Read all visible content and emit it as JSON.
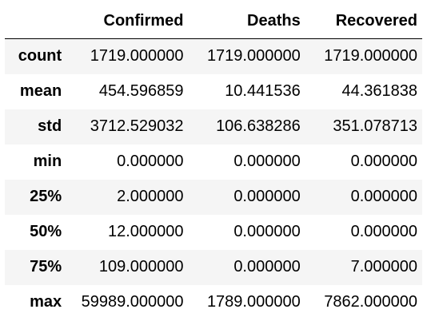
{
  "table": {
    "columns": [
      "",
      "Confirmed",
      "Deaths",
      "Recovered"
    ],
    "rows": [
      {
        "index": "count",
        "values": [
          "1719.000000",
          "1719.000000",
          "1719.000000"
        ]
      },
      {
        "index": "mean",
        "values": [
          "454.596859",
          "10.441536",
          "44.361838"
        ]
      },
      {
        "index": "std",
        "values": [
          "3712.529032",
          "106.638286",
          "351.078713"
        ]
      },
      {
        "index": "min",
        "values": [
          "0.000000",
          "0.000000",
          "0.000000"
        ]
      },
      {
        "index": "25%",
        "values": [
          "2.000000",
          "0.000000",
          "0.000000"
        ]
      },
      {
        "index": "50%",
        "values": [
          "12.000000",
          "0.000000",
          "0.000000"
        ]
      },
      {
        "index": "75%",
        "values": [
          "109.000000",
          "0.000000",
          "7.000000"
        ]
      },
      {
        "index": "max",
        "values": [
          "59989.000000",
          "1789.000000",
          "7862.000000"
        ]
      }
    ]
  },
  "colors": {
    "stripe": "#f5f5f5",
    "background": "#ffffff",
    "header_rule": "#000000"
  }
}
